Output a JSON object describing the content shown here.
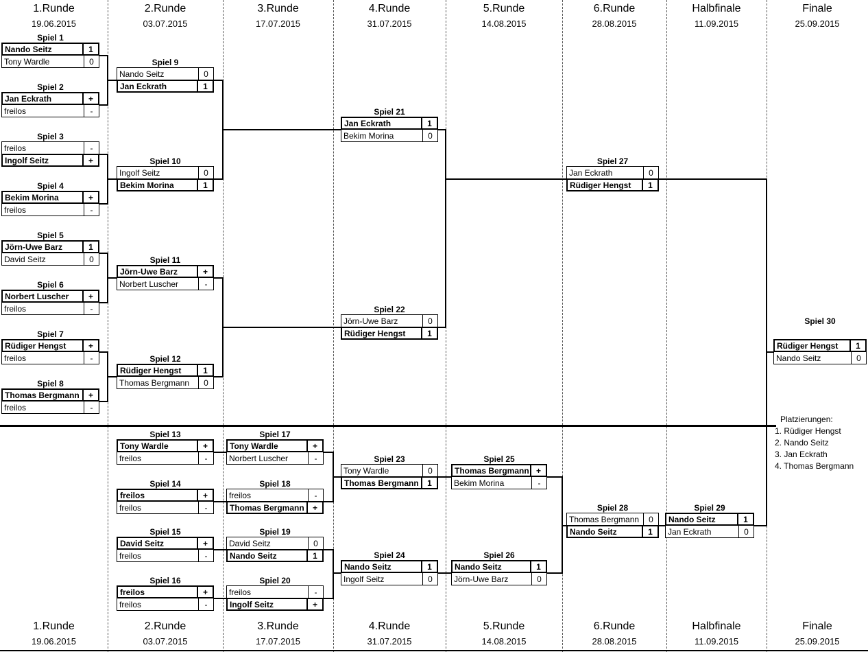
{
  "rounds": [
    {
      "name": "1.Runde",
      "date": "19.06.2015"
    },
    {
      "name": "2.Runde",
      "date": "03.07.2015"
    },
    {
      "name": "3.Runde",
      "date": "17.07.2015"
    },
    {
      "name": "4.Runde",
      "date": "31.07.2015"
    },
    {
      "name": "5.Runde",
      "date": "14.08.2015"
    },
    {
      "name": "6.Runde",
      "date": "28.08.2015"
    },
    {
      "name": "Halbfinale",
      "date": "11.09.2015"
    },
    {
      "name": "Finale",
      "date": "25.09.2015"
    }
  ],
  "matches": [
    {
      "num": 1,
      "title": "Spiel 1",
      "players": [
        {
          "name": "Nando Seitz",
          "score": "1",
          "winner": true
        },
        {
          "name": "Tony Wardle",
          "score": "0",
          "winner": false
        }
      ]
    },
    {
      "num": 2,
      "title": "Spiel 2",
      "players": [
        {
          "name": "Jan Eckrath",
          "score": "+",
          "winner": true
        },
        {
          "name": "freilos",
          "score": "-",
          "winner": false
        }
      ]
    },
    {
      "num": 3,
      "title": "Spiel 3",
      "players": [
        {
          "name": "freilos",
          "score": "-",
          "winner": false
        },
        {
          "name": "Ingolf Seitz",
          "score": "+",
          "winner": true
        }
      ]
    },
    {
      "num": 4,
      "title": "Spiel 4",
      "players": [
        {
          "name": "Bekim Morina",
          "score": "+",
          "winner": true
        },
        {
          "name": "freilos",
          "score": "-",
          "winner": false
        }
      ]
    },
    {
      "num": 5,
      "title": "Spiel 5",
      "players": [
        {
          "name": "Jörn-Uwe Barz",
          "score": "1",
          "winner": true
        },
        {
          "name": "David Seitz",
          "score": "0",
          "winner": false
        }
      ]
    },
    {
      "num": 6,
      "title": "Spiel 6",
      "players": [
        {
          "name": "Norbert Luscher",
          "score": "+",
          "winner": true
        },
        {
          "name": "freilos",
          "score": "-",
          "winner": false
        }
      ]
    },
    {
      "num": 7,
      "title": "Spiel 7",
      "players": [
        {
          "name": "Rüdiger Hengst",
          "score": "+",
          "winner": true
        },
        {
          "name": "freilos",
          "score": "-",
          "winner": false
        }
      ]
    },
    {
      "num": 8,
      "title": "Spiel 8",
      "players": [
        {
          "name": "Thomas Bergmann",
          "score": "+",
          "winner": true
        },
        {
          "name": "freilos",
          "score": "-",
          "winner": false
        }
      ]
    },
    {
      "num": 9,
      "title": "Spiel 9",
      "players": [
        {
          "name": "Nando Seitz",
          "score": "0",
          "winner": false
        },
        {
          "name": "Jan Eckrath",
          "score": "1",
          "winner": true
        }
      ]
    },
    {
      "num": 10,
      "title": "Spiel 10",
      "players": [
        {
          "name": "Ingolf Seitz",
          "score": "0",
          "winner": false
        },
        {
          "name": "Bekim Morina",
          "score": "1",
          "winner": true
        }
      ]
    },
    {
      "num": 11,
      "title": "Spiel 11",
      "players": [
        {
          "name": "Jörn-Uwe Barz",
          "score": "+",
          "winner": true
        },
        {
          "name": "Norbert Luscher",
          "score": "-",
          "winner": false
        }
      ]
    },
    {
      "num": 12,
      "title": "Spiel 12",
      "players": [
        {
          "name": "Rüdiger Hengst",
          "score": "1",
          "winner": true
        },
        {
          "name": "Thomas Bergmann",
          "score": "0",
          "winner": false
        }
      ]
    },
    {
      "num": 13,
      "title": "Spiel 13",
      "players": [
        {
          "name": "Tony Wardle",
          "score": "+",
          "winner": true
        },
        {
          "name": "freilos",
          "score": "-",
          "winner": false
        }
      ]
    },
    {
      "num": 14,
      "title": "Spiel 14",
      "players": [
        {
          "name": "freilos",
          "score": "+",
          "winner": true
        },
        {
          "name": "freilos",
          "score": "-",
          "winner": false
        }
      ]
    },
    {
      "num": 15,
      "title": "Spiel 15",
      "players": [
        {
          "name": "David Seitz",
          "score": "+",
          "winner": true
        },
        {
          "name": "freilos",
          "score": "-",
          "winner": false
        }
      ]
    },
    {
      "num": 16,
      "title": "Spiel 16",
      "players": [
        {
          "name": "freilos",
          "score": "+",
          "winner": true
        },
        {
          "name": "freilos",
          "score": "-",
          "winner": false
        }
      ]
    },
    {
      "num": 17,
      "title": "Spiel 17",
      "players": [
        {
          "name": "Tony Wardle",
          "score": "+",
          "winner": true
        },
        {
          "name": "Norbert Luscher",
          "score": "-",
          "winner": false
        }
      ]
    },
    {
      "num": 18,
      "title": "Spiel 18",
      "players": [
        {
          "name": "freilos",
          "score": "-",
          "winner": false
        },
        {
          "name": "Thomas Bergmann",
          "score": "+",
          "winner": true
        }
      ]
    },
    {
      "num": 19,
      "title": "Spiel 19",
      "players": [
        {
          "name": "David Seitz",
          "score": "0",
          "winner": false
        },
        {
          "name": "Nando Seitz",
          "score": "1",
          "winner": true
        }
      ]
    },
    {
      "num": 20,
      "title": "Spiel 20",
      "players": [
        {
          "name": "freilos",
          "score": "-",
          "winner": false
        },
        {
          "name": "Ingolf Seitz",
          "score": "+",
          "winner": true
        }
      ]
    },
    {
      "num": 21,
      "title": "Spiel 21",
      "players": [
        {
          "name": "Jan Eckrath",
          "score": "1",
          "winner": true
        },
        {
          "name": "Bekim Morina",
          "score": "0",
          "winner": false
        }
      ]
    },
    {
      "num": 22,
      "title": "Spiel 22",
      "players": [
        {
          "name": "Jörn-Uwe Barz",
          "score": "0",
          "winner": false
        },
        {
          "name": "Rüdiger Hengst",
          "score": "1",
          "winner": true
        }
      ]
    },
    {
      "num": 23,
      "title": "Spiel 23",
      "players": [
        {
          "name": "Tony Wardle",
          "score": "0",
          "winner": false
        },
        {
          "name": "Thomas Bergmann",
          "score": "1",
          "winner": true
        }
      ]
    },
    {
      "num": 24,
      "title": "Spiel 24",
      "players": [
        {
          "name": "Nando Seitz",
          "score": "1",
          "winner": true
        },
        {
          "name": "Ingolf Seitz",
          "score": "0",
          "winner": false
        }
      ]
    },
    {
      "num": 25,
      "title": "Spiel 25",
      "players": [
        {
          "name": "Thomas Bergmann",
          "score": "+",
          "winner": true
        },
        {
          "name": "Bekim Morina",
          "score": "-",
          "winner": false
        }
      ]
    },
    {
      "num": 26,
      "title": "Spiel 26",
      "players": [
        {
          "name": "Nando Seitz",
          "score": "1",
          "winner": true
        },
        {
          "name": "Jörn-Uwe Barz",
          "score": "0",
          "winner": false
        }
      ]
    },
    {
      "num": 27,
      "title": "Spiel 27",
      "players": [
        {
          "name": "Jan Eckrath",
          "score": "0",
          "winner": false
        },
        {
          "name": "Rüdiger Hengst",
          "score": "1",
          "winner": true
        }
      ]
    },
    {
      "num": 28,
      "title": "Spiel 28",
      "players": [
        {
          "name": "Thomas Bergmann",
          "score": "0",
          "winner": false
        },
        {
          "name": "Nando Seitz",
          "score": "1",
          "winner": true
        }
      ]
    },
    {
      "num": 29,
      "title": "Spiel 29",
      "players": [
        {
          "name": "Nando Seitz",
          "score": "1",
          "winner": true
        },
        {
          "name": "Jan Eckrath",
          "score": "0",
          "winner": false
        }
      ]
    },
    {
      "num": 30,
      "title": "Spiel 30",
      "players": [
        {
          "name": "Rüdiger Hengst",
          "score": "1",
          "winner": true
        },
        {
          "name": "Nando Seitz",
          "score": "0",
          "winner": false
        }
      ]
    }
  ],
  "placements": {
    "title": "Platzierungen:",
    "items": [
      "1. Rüdiger Hengst",
      "2. Nando Seitz",
      "3. Jan Eckrath",
      "4. Thomas Bergmann"
    ]
  }
}
